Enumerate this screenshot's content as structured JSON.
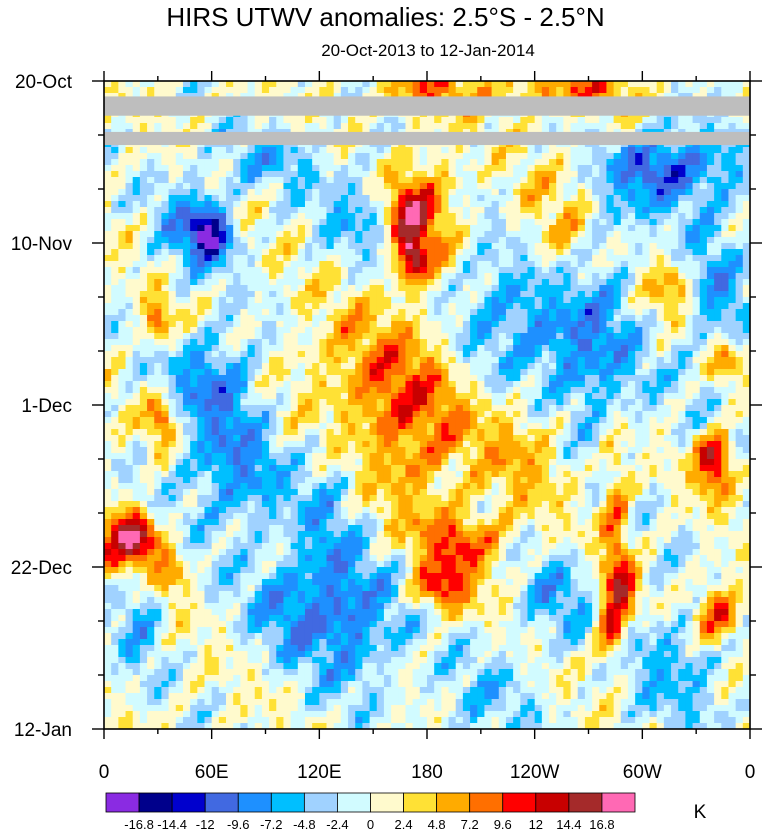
{
  "chart_data": {
    "type": "heatmap",
    "title": "HIRS UTWV anomalies: 2.5°S - 2.5°N",
    "subtitle": "20-Oct-2013 to 12-Jan-2014",
    "xlabel": "",
    "ylabel": "",
    "x_range_deg_east": [
      0,
      360
    ],
    "y_range_days": [
      0,
      84
    ],
    "x_ticks": [
      {
        "label": "0",
        "lon": 0
      },
      {
        "label": "60E",
        "lon": 60
      },
      {
        "label": "120E",
        "lon": 120
      },
      {
        "label": "180",
        "lon": 180
      },
      {
        "label": "120W",
        "lon": 240
      },
      {
        "label": "60W",
        "lon": 300
      },
      {
        "label": "0",
        "lon": 360
      }
    ],
    "y_ticks": [
      {
        "label": "20-Oct",
        "day": 0
      },
      {
        "label": "10-Nov",
        "day": 21
      },
      {
        "label": "1-Dec",
        "day": 42
      },
      {
        "label": "22-Dec",
        "day": 63
      },
      {
        "label": "12-Jan",
        "day": 84
      }
    ],
    "colorbar": {
      "unit": "K",
      "labels": [
        "-16.8",
        "-14.4",
        "-12",
        "-9.6",
        "-7.2",
        "-4.8",
        "-2.4",
        "0",
        "2.4",
        "4.8",
        "7.2",
        "9.6",
        "12",
        "14.4",
        "16.8"
      ],
      "levels": [
        -16.8,
        -14.4,
        -12,
        -9.6,
        -7.2,
        -4.8,
        -2.4,
        0,
        2.4,
        4.8,
        7.2,
        9.6,
        12,
        14.4,
        16.8
      ],
      "colors": [
        "#8a2be2",
        "#00008b",
        "#0000cd",
        "#4169e1",
        "#1e90ff",
        "#00bfff",
        "#a0d2ff",
        "#d1fbff",
        "#fffacd",
        "#ffe135",
        "#ffab00",
        "#ff6f00",
        "#ff0000",
        "#c80000",
        "#a52a2a",
        "#ff69b4"
      ]
    },
    "missing_color": "#bebebe",
    "missing_bands_days": [
      [
        2.0,
        4.5
      ],
      [
        6.6,
        8.3
      ]
    ],
    "features": [
      {
        "lon": 20,
        "day": 59,
        "value": 14.5,
        "size_lon": 10,
        "size_day": 3.5
      },
      {
        "lon": 10,
        "day": 60,
        "value": 11,
        "size_lon": 14,
        "size_day": 5
      },
      {
        "lon": 35,
        "day": 63,
        "value": 9,
        "size_lon": 12,
        "size_day": 4
      },
      {
        "lon": 168,
        "day": 17,
        "value": 11,
        "size_lon": 12,
        "size_day": 4
      },
      {
        "lon": 172,
        "day": 23,
        "value": 13,
        "size_lon": 8,
        "size_day": 3
      },
      {
        "lon": 178,
        "day": 17,
        "value": 9,
        "size_lon": 20,
        "size_day": 8
      },
      {
        "lon": 188,
        "day": 66,
        "value": 11,
        "size_lon": 16,
        "size_day": 3
      },
      {
        "lon": 200,
        "day": 60,
        "value": 9,
        "size_lon": 24,
        "size_day": 4
      },
      {
        "lon": 318,
        "day": 27,
        "value": 7,
        "size_lon": 14,
        "size_day": 4
      },
      {
        "lon": 340,
        "day": 48,
        "value": 11,
        "size_lon": 10,
        "size_day": 2.5
      },
      {
        "lon": 340,
        "day": 51,
        "value": 9,
        "size_lon": 10,
        "size_day": 3
      },
      {
        "lon": 342,
        "day": 69,
        "value": 12,
        "size_lon": 14,
        "size_day": 4
      },
      {
        "lon": 345,
        "day": 36,
        "value": 9,
        "size_lon": 10,
        "size_day": 3
      },
      {
        "lon": 285,
        "day": 57,
        "value": 8,
        "size_lon": 8,
        "size_day": 12
      },
      {
        "lon": 282,
        "day": 71,
        "value": 11,
        "size_lon": 8,
        "size_day": 4
      },
      {
        "lon": 290,
        "day": 66,
        "value": 10,
        "size_lon": 8,
        "size_day": 3
      },
      {
        "lon": 260,
        "day": 21,
        "value": 6,
        "size_lon": 40,
        "size_day": 10
      },
      {
        "lon": 140,
        "day": 39,
        "value": 6,
        "size_lon": 40,
        "size_day": 10
      },
      {
        "lon": 175,
        "day": 45,
        "value": 7,
        "size_lon": 30,
        "size_day": 12
      },
      {
        "lon": 240,
        "day": 47,
        "value": 6,
        "size_lon": 30,
        "size_day": 8
      },
      {
        "lon": 260,
        "day": 1,
        "value": 8,
        "size_lon": 40,
        "size_day": 3
      },
      {
        "lon": 180,
        "day": 1,
        "value": 7,
        "size_lon": 30,
        "size_day": 3
      },
      {
        "lon": 30,
        "day": 31,
        "value": 9,
        "size_lon": 8,
        "size_day": 3
      },
      {
        "lon": 32,
        "day": 44,
        "value": 11,
        "size_lon": 8,
        "size_day": 3
      },
      {
        "lon": 60,
        "day": 20,
        "value": -12,
        "size_lon": 10,
        "size_day": 3
      },
      {
        "lon": 50,
        "day": 19,
        "value": -8,
        "size_lon": 20,
        "size_day": 6
      },
      {
        "lon": 72,
        "day": 50,
        "value": -8,
        "size_lon": 30,
        "size_day": 10
      },
      {
        "lon": 60,
        "day": 38,
        "value": -7,
        "size_lon": 24,
        "size_day": 6
      },
      {
        "lon": 150,
        "day": 17,
        "value": -6,
        "size_lon": 30,
        "size_day": 6
      },
      {
        "lon": 250,
        "day": 31,
        "value": -6,
        "size_lon": 40,
        "size_day": 8
      },
      {
        "lon": 270,
        "day": 40,
        "value": -7,
        "size_lon": 30,
        "size_day": 10
      },
      {
        "lon": 252,
        "day": 67,
        "value": -6,
        "size_lon": 20,
        "size_day": 6
      },
      {
        "lon": 280,
        "day": 20,
        "value": -7,
        "size_lon": 20,
        "size_day": 10
      },
      {
        "lon": 305,
        "day": 11,
        "value": -9,
        "size_lon": 20,
        "size_day": 4
      },
      {
        "lon": 330,
        "day": 12,
        "value": -7,
        "size_lon": 30,
        "size_day": 6
      },
      {
        "lon": 20,
        "day": 66,
        "value": -7,
        "size_lon": 14,
        "size_day": 10
      },
      {
        "lon": 140,
        "day": 70,
        "value": -8,
        "size_lon": 30,
        "size_day": 8
      },
      {
        "lon": 100,
        "day": 68,
        "value": -6,
        "size_lon": 20,
        "size_day": 6
      },
      {
        "lon": 220,
        "day": 27,
        "value": -5,
        "size_lon": 30,
        "size_day": 10
      },
      {
        "lon": 340,
        "day": 28,
        "value": -7,
        "size_lon": 20,
        "size_day": 10
      },
      {
        "lon": 320,
        "day": 75,
        "value": -6,
        "size_lon": 30,
        "size_day": 8
      },
      {
        "lon": 125,
        "day": 58,
        "value": -5,
        "size_lon": 20,
        "size_day": 16
      },
      {
        "lon": 90,
        "day": 10,
        "value": -5,
        "size_lon": 30,
        "size_day": 4
      },
      {
        "lon": 210,
        "day": 80,
        "value": -4,
        "size_lon": 30,
        "size_day": 6
      }
    ]
  }
}
